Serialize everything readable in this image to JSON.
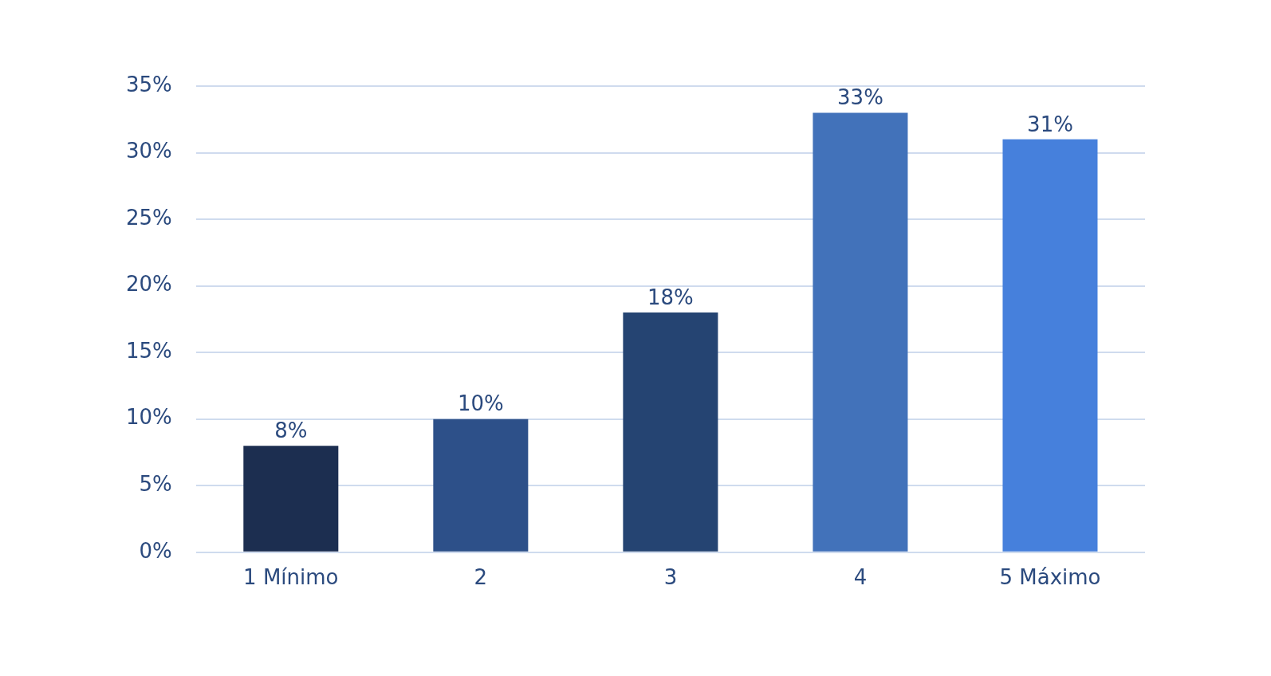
{
  "chart_data": {
    "type": "bar",
    "categories": [
      "1 Mínimo",
      "2",
      "3",
      "4",
      "5 Máximo"
    ],
    "values": [
      8,
      10,
      18,
      33,
      31
    ],
    "colors": [
      "#1c2e50",
      "#2d5089",
      "#254472",
      "#4272ba",
      "#4680dc"
    ],
    "value_labels": [
      "8%",
      "10%",
      "18%",
      "33%",
      "31%"
    ],
    "ylim": [
      0,
      35
    ],
    "yticks": [
      {
        "value": 0,
        "label": "0%"
      },
      {
        "value": 5,
        "label": "5%"
      },
      {
        "value": 10,
        "label": "10%"
      },
      {
        "value": 15,
        "label": "15%"
      },
      {
        "value": 20,
        "label": "20%"
      },
      {
        "value": 25,
        "label": "25%"
      },
      {
        "value": 30,
        "label": "30%"
      },
      {
        "value": 35,
        "label": "35%"
      }
    ],
    "grid": "y"
  }
}
